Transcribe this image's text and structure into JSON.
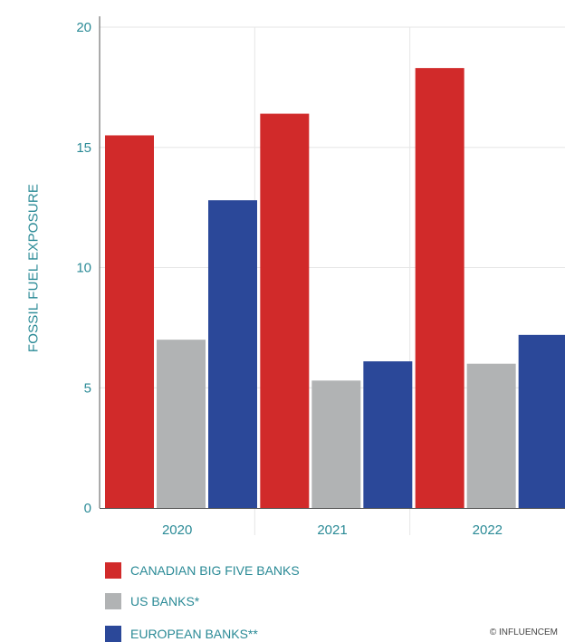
{
  "chart_data": {
    "type": "bar",
    "categories": [
      "2020",
      "2021",
      "2022"
    ],
    "series": [
      {
        "name": "CANADIAN BIG FIVE BANKS",
        "values": [
          15.5,
          16.4,
          18.3
        ],
        "color": "#d12a2a"
      },
      {
        "name": "US BANKS*",
        "values": [
          7.0,
          5.3,
          6.0
        ],
        "color": "#b1b3b4"
      },
      {
        "name": "EUROPEAN BANKS**",
        "values": [
          12.8,
          6.1,
          7.2
        ],
        "color": "#2b4899"
      }
    ],
    "ylabel": "FOSSIL FUEL EXPOSURE",
    "ylim": [
      0,
      20
    ],
    "yticks": [
      "0",
      "5",
      "10",
      "15",
      "20"
    ],
    "grid": true,
    "legend_position": "bottom-left"
  },
  "credit": "© INFLUENCEM"
}
